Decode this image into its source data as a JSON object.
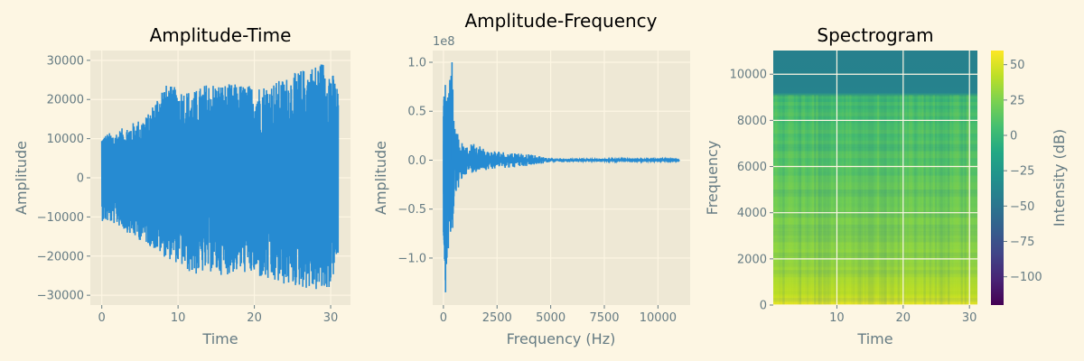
{
  "style": {
    "figure_bg": "#fdf6e3",
    "axes_bg": "#eee8d5",
    "grid": "#fdf6e3",
    "line": "#268bd2",
    "text": "#657b83"
  },
  "chart_data": [
    {
      "type": "line",
      "title": "Amplitude-Time",
      "xlabel": "Time",
      "ylabel": "Amplitude",
      "xlim": [
        -1.5,
        32.6
      ],
      "ylim": [
        -32500,
        32500
      ],
      "xticks": [
        0,
        10,
        20,
        30
      ],
      "yticks": [
        -30000,
        -20000,
        -10000,
        0,
        10000,
        20000,
        30000
      ],
      "grid": true,
      "series": [
        {
          "x": [
            0,
            2,
            4,
            6,
            8,
            10,
            12,
            14,
            16,
            18,
            20,
            22,
            24,
            26,
            28,
            29,
            30,
            31
          ],
          "upper": [
            11000,
            12000,
            14000,
            16000,
            24000,
            23000,
            22000,
            24500,
            24000,
            24000,
            23500,
            24000,
            25500,
            27500,
            29000,
            30000,
            28000,
            23000
          ],
          "lower": [
            -11000,
            -12000,
            -15000,
            -17000,
            -20000,
            -22000,
            -25000,
            -24000,
            -25000,
            -24000,
            -25000,
            -27000,
            -27500,
            -28000,
            -29000,
            -29500,
            -28000,
            -20000
          ]
        }
      ]
    },
    {
      "type": "line",
      "title": "Amplitude-Frequency",
      "xlabel": "Frequency (Hz)",
      "ylabel": "Amplitude",
      "offset_label": "1e8",
      "xlim": [
        -500,
        11500
      ],
      "ylim": [
        -1.48,
        1.12
      ],
      "xticks": [
        0,
        2500,
        5000,
        7500,
        10000
      ],
      "yticks": [
        -1.0,
        -0.5,
        0.0,
        0.5,
        1.0
      ],
      "ytick_labels": [
        "−1.0",
        "−0.5",
        "0.0",
        "0.5",
        "1.0"
      ],
      "grid": true,
      "series": [
        {
          "x": [
            0,
            100,
            200,
            300,
            400,
            500,
            700,
            1000,
            1500,
            2000,
            2500,
            3000,
            3500,
            4000,
            5000,
            6000,
            7000,
            8000,
            9000,
            11000
          ],
          "upper": [
            0.7,
            0.82,
            0.7,
            0.8,
            1.0,
            0.45,
            0.25,
            0.12,
            0.2,
            0.1,
            0.1,
            0.08,
            0.08,
            0.06,
            0.02,
            0.02,
            0.02,
            0.01,
            0.01,
            0.01
          ],
          "lower": [
            -0.75,
            -1.35,
            -0.9,
            -0.7,
            -1.0,
            -0.4,
            -0.3,
            -0.15,
            -0.12,
            -0.1,
            -0.08,
            -0.08,
            -0.07,
            -0.06,
            -0.02,
            -0.02,
            -0.02,
            -0.01,
            -0.01,
            -0.01
          ]
        }
      ]
    },
    {
      "type": "heatmap",
      "title": "Spectrogram",
      "xlabel": "Time",
      "ylabel": "Frequency",
      "xlim": [
        0.4,
        31.2
      ],
      "ylim": [
        0,
        11025
      ],
      "xticks": [
        10,
        20,
        30
      ],
      "yticks": [
        0,
        2000,
        4000,
        6000,
        8000,
        10000
      ],
      "grid": true,
      "colorbar": {
        "label": "Intensity (dB)",
        "range": [
          -120,
          60
        ],
        "ticks": [
          50,
          25,
          0,
          -25,
          -50,
          -75,
          -100
        ],
        "tick_labels": [
          "50",
          "25",
          "0",
          "−25",
          "−50",
          "−75",
          "−100"
        ]
      },
      "intensity_profile": [
        {
          "freq": 0,
          "db": 55
        },
        {
          "freq": 500,
          "db": 42
        },
        {
          "freq": 2000,
          "db": 30
        },
        {
          "freq": 4000,
          "db": 22
        },
        {
          "freq": 6000,
          "db": 10
        },
        {
          "freq": 8000,
          "db": 6
        },
        {
          "freq": 9000,
          "db": 2
        },
        {
          "freq": 9200,
          "db": -40
        },
        {
          "freq": 11025,
          "db": -42
        }
      ]
    }
  ]
}
